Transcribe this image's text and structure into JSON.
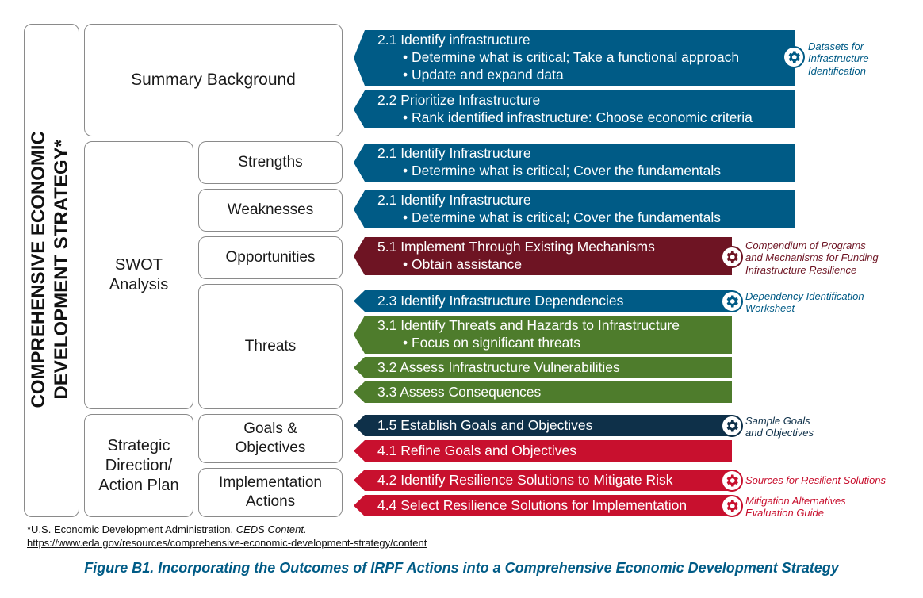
{
  "left_label": {
    "line1": "COMPREHENSIVE ECONOMIC",
    "line2": "DEVELOPMENT STRATEGY*"
  },
  "sections": {
    "summary": "Summary Background",
    "swot": {
      "line1": "SWOT",
      "line2": "Analysis"
    },
    "strategic": {
      "line1": "Strategic",
      "line2": "Direction/",
      "line3": "Action Plan"
    }
  },
  "subsections": {
    "strengths": "Strengths",
    "weaknesses": "Weaknesses",
    "opportunities": "Opportunities",
    "threats": "Threats",
    "goals": {
      "line1": "Goals &",
      "line2": "Objectives"
    },
    "implementation": {
      "line1": "Implementation",
      "line2": "Actions"
    }
  },
  "bars": [
    {
      "title": "2.1 Identify infrastructure",
      "bullets": [
        "• Determine what is critical; Take a functional approach",
        "• Update and expand data"
      ],
      "color": "#005b86"
    },
    {
      "title": "2.2 Prioritize Infrastructure",
      "bullets": [
        "• Rank identified infrastructure: Choose economic criteria"
      ],
      "color": "#005b86"
    },
    {
      "title": "2.1 Identify Infrastructure",
      "bullets": [
        "• Determine what is critical; Cover the fundamentals"
      ],
      "color": "#005b86"
    },
    {
      "title": "2.1 Identify Infrastructure",
      "bullets": [
        "• Determine what is critical; Cover the fundamentals"
      ],
      "color": "#005b86"
    },
    {
      "title": "5.1 Implement Through Existing Mechanisms",
      "bullets": [
        "• Obtain assistance"
      ],
      "color": "#6e1423"
    },
    {
      "title": "2.3 Identify Infrastructure Dependencies",
      "bullets": [],
      "color": "#005b86"
    },
    {
      "title": "3.1 Identify Threats and Hazards to Infrastructure",
      "bullets": [
        "• Focus on significant threats"
      ],
      "color": "#4e7c2c"
    },
    {
      "title": "3.2 Assess Infrastructure Vulnerabilities",
      "bullets": [],
      "color": "#4e7c2c"
    },
    {
      "title": "3.3 Assess Consequences",
      "bullets": [],
      "color": "#4e7c2c"
    },
    {
      "title": "1.5 Establish Goals and Objectives",
      "bullets": [],
      "color": "#0e3049"
    },
    {
      "title": "4.1 Refine Goals and Objectives",
      "bullets": [],
      "color": "#c8102e"
    },
    {
      "title": "4.2 Identify Resilience Solutions to Mitigate Risk",
      "bullets": [],
      "color": "#c8102e"
    },
    {
      "title": "4.4 Select Resilience Solutions for Implementation",
      "bullets": [],
      "color": "#c8102e"
    }
  ],
  "resources": [
    {
      "lines": [
        "Datasets for",
        "Infrastructure",
        "Identification"
      ],
      "icon": "gear-icon"
    },
    {
      "lines": [
        "Compendium of Programs",
        "and Mechanisms for Funding",
        "Infrastructure Resilience"
      ],
      "icon": "gear-icon"
    },
    {
      "lines": [
        "Dependency Identification",
        "Worksheet"
      ],
      "icon": "gear-icon"
    },
    {
      "lines": [
        "Sample Goals",
        "and Objectives"
      ],
      "icon": "gear-icon"
    },
    {
      "lines": [
        "Sources for Resilient Solutions"
      ],
      "icon": "gear-icon"
    },
    {
      "lines": [
        "Mitigation Alternatives",
        "Evaluation Guide"
      ],
      "icon": "gear-icon"
    }
  ],
  "footnote": {
    "source_prefix": "*U.S. Economic Development Administration. ",
    "source_title": "CEDS Content.",
    "url": "https://www.eda.gov/resources/comprehensive-economic-development-strategy/content"
  },
  "caption": "Figure B1. Incorporating the Outcomes of IRPF Actions into a Comprehensive Economic Development Strategy"
}
